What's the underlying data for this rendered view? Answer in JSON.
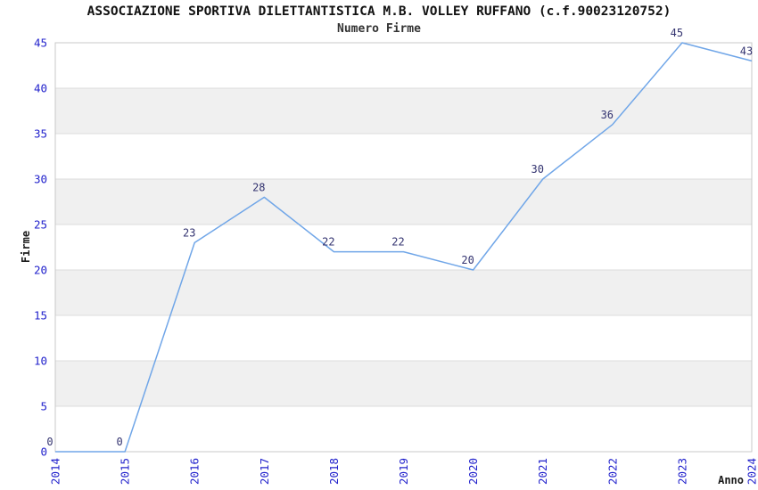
{
  "header": {
    "title": "ASSOCIAZIONE SPORTIVA DILETTANTISTICA M.B. VOLLEY RUFFANO (c.f.90023120752)",
    "subtitle": "Numero Firme"
  },
  "chart_data": {
    "type": "line",
    "title": "ASSOCIAZIONE SPORTIVA DILETTANTISTICA M.B. VOLLEY RUFFANO (c.f.90023120752)",
    "subtitle": "Numero Firme",
    "xlabel": "Anno",
    "ylabel": "Firme",
    "x": [
      2014,
      2015,
      2016,
      2017,
      2018,
      2019,
      2020,
      2021,
      2022,
      2023,
      2024
    ],
    "series": [
      {
        "name": "Numero Firme",
        "values": [
          0,
          0,
          23,
          28,
          22,
          22,
          20,
          30,
          36,
          45,
          43
        ]
      }
    ],
    "ylim": [
      0,
      45
    ],
    "ytick_step": 5,
    "yticks": [
      0,
      5,
      10,
      15,
      20,
      25,
      30,
      35,
      40,
      45
    ],
    "grid": true,
    "legend_position": "none",
    "data_labels_visible": true,
    "background_bands": "alternating",
    "colors": {
      "line": "#70A6E8",
      "tick_label": "#2222CC",
      "data_label": "#333370",
      "band": "#F0F0F0",
      "grid": "#DCDCDC",
      "border": "#C8C8C8",
      "title": "#111111"
    }
  }
}
